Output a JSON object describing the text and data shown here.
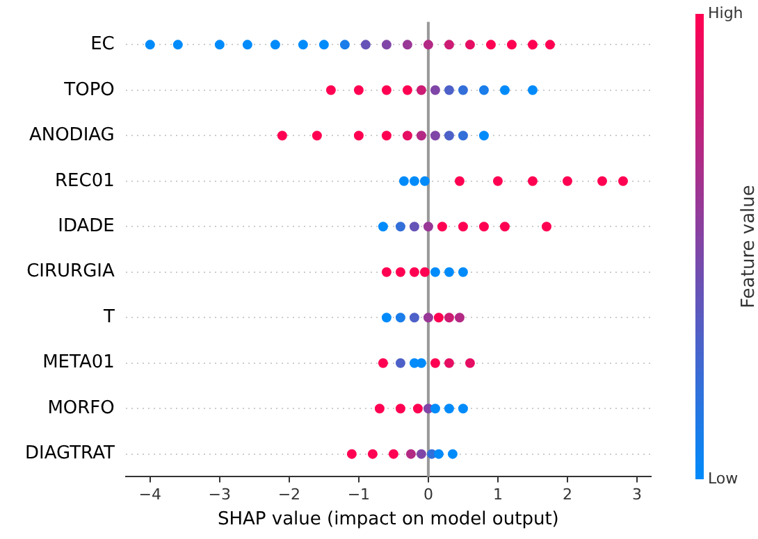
{
  "chart_data": {
    "type": "scatter",
    "orientation": "horizontal",
    "xlabel": "SHAP value (impact on model output)",
    "clabel": "Feature value",
    "clim": [
      0,
      1
    ],
    "cticks": [
      {
        "value": 0,
        "label": "Low"
      },
      {
        "value": 1,
        "label": "High"
      }
    ],
    "xlim": [
      -4.35,
      3.2
    ],
    "xticks": [
      -4,
      -3,
      -2,
      -1,
      0,
      1,
      2,
      3
    ],
    "grid": "y",
    "legend": false,
    "marker": "circle",
    "ref_lines": [
      {
        "axis": "x",
        "value": 0,
        "color": "#999999"
      }
    ],
    "categories": [
      "EC",
      "TOPO",
      "ANODIAG",
      "REC01",
      "IDADE",
      "CIRURGIA",
      "T",
      "META01",
      "MORFO",
      "DIAGTRAT"
    ],
    "series": [
      {
        "x": [
          "EC",
          "EC",
          "EC",
          "EC",
          "EC",
          "EC",
          "EC",
          "EC",
          "EC",
          "EC",
          "EC",
          "EC",
          "EC",
          "EC",
          "EC",
          "EC",
          "EC",
          "EC"
        ],
        "values": [
          -4.0,
          -3.6,
          -3.0,
          -2.6,
          -2.2,
          -1.8,
          -1.5,
          -1.2,
          -0.9,
          -0.6,
          -0.3,
          0,
          0.3,
          0.6,
          0.9,
          1.2,
          1.5,
          1.75
        ],
        "cvalues": [
          0,
          0,
          0,
          0,
          0,
          0,
          0,
          0.1,
          0.4,
          0.5,
          0.6,
          0.7,
          0.8,
          0.9,
          1,
          1,
          1,
          1
        ],
        "colors": [
          "#008bfb",
          "#008bfb",
          "#008bfb",
          "#008bfb",
          "#008bfb",
          "#008bfb",
          "#008bfb",
          "#1a7dea",
          "#6653b7",
          "#8046a7",
          "#993896",
          "#b32a85",
          "#cc1c74",
          "#e60e63",
          "#ff0052",
          "#ff0052",
          "#ff0052",
          "#ff0052"
        ]
      },
      {
        "x": [
          "TOPO",
          "TOPO",
          "TOPO",
          "TOPO",
          "TOPO",
          "TOPO",
          "TOPO",
          "TOPO",
          "TOPO",
          "TOPO",
          "TOPO"
        ],
        "values": [
          -1.4,
          -1.0,
          -0.6,
          -0.3,
          -0.1,
          0.1,
          0.3,
          0.5,
          0.8,
          1.1,
          1.5
        ],
        "cvalues": [
          1,
          1,
          1,
          1,
          0.8,
          0.5,
          0.3,
          0.2,
          0.1,
          0,
          0
        ],
        "colors": [
          "#ff0052",
          "#ff0052",
          "#ff0052",
          "#ff0052",
          "#cc1c74",
          "#8046a7",
          "#4d61c8",
          "#336fd9",
          "#1a7dea",
          "#008bfb",
          "#008bfb"
        ]
      },
      {
        "x": [
          "ANODIAG",
          "ANODIAG",
          "ANODIAG",
          "ANODIAG",
          "ANODIAG",
          "ANODIAG",
          "ANODIAG",
          "ANODIAG",
          "ANODIAG",
          "ANODIAG"
        ],
        "values": [
          -2.1,
          -1.6,
          -1.0,
          -0.6,
          -0.3,
          -0.1,
          0.1,
          0.3,
          0.5,
          0.8
        ],
        "cvalues": [
          1,
          1,
          1,
          1,
          0.9,
          0.7,
          0.5,
          0.3,
          0.2,
          0
        ],
        "colors": [
          "#ff0052",
          "#ff0052",
          "#ff0052",
          "#ff0052",
          "#e60e63",
          "#b32a85",
          "#8046a7",
          "#4d61c8",
          "#336fd9",
          "#008bfb"
        ]
      },
      {
        "x": [
          "REC01",
          "REC01",
          "REC01",
          "REC01",
          "REC01",
          "REC01",
          "REC01",
          "REC01",
          "REC01"
        ],
        "values": [
          -0.35,
          -0.2,
          -0.05,
          0.45,
          1.0,
          1.5,
          2.0,
          2.5,
          2.8
        ],
        "cvalues": [
          0,
          0,
          0,
          1,
          1,
          1,
          1,
          1,
          1
        ],
        "colors": [
          "#008bfb",
          "#008bfb",
          "#008bfb",
          "#ff0052",
          "#ff0052",
          "#ff0052",
          "#ff0052",
          "#ff0052",
          "#ff0052"
        ]
      },
      {
        "x": [
          "IDADE",
          "IDADE",
          "IDADE",
          "IDADE",
          "IDADE",
          "IDADE",
          "IDADE",
          "IDADE",
          "IDADE"
        ],
        "values": [
          -0.65,
          -0.4,
          -0.2,
          0,
          0.2,
          0.5,
          0.8,
          1.1,
          1.7
        ],
        "cvalues": [
          0,
          0.2,
          0.4,
          0.6,
          1,
          1,
          1,
          1,
          1
        ],
        "colors": [
          "#008bfb",
          "#336fd9",
          "#6653b7",
          "#993896",
          "#ff0052",
          "#ff0052",
          "#ff0052",
          "#ff0052",
          "#ff0052"
        ]
      },
      {
        "x": [
          "CIRURGIA",
          "CIRURGIA",
          "CIRURGIA",
          "CIRURGIA",
          "CIRURGIA",
          "CIRURGIA",
          "CIRURGIA"
        ],
        "values": [
          -0.6,
          -0.4,
          -0.2,
          -0.05,
          0.1,
          0.3,
          0.5
        ],
        "cvalues": [
          1,
          1,
          1,
          1,
          0,
          0,
          0
        ],
        "colors": [
          "#ff0052",
          "#ff0052",
          "#ff0052",
          "#ff0052",
          "#008bfb",
          "#008bfb",
          "#008bfb"
        ]
      },
      {
        "x": [
          "T",
          "T",
          "T",
          "T",
          "T",
          "T",
          "T"
        ],
        "values": [
          -0.6,
          -0.4,
          -0.2,
          0,
          0.15,
          0.3,
          0.45
        ],
        "cvalues": [
          0,
          0.1,
          0.3,
          0.6,
          1,
          0.8,
          0.7
        ],
        "colors": [
          "#008bfb",
          "#1a7dea",
          "#4d61c8",
          "#993896",
          "#ff0052",
          "#cc1c74",
          "#b32a85"
        ]
      },
      {
        "x": [
          "META01",
          "META01",
          "META01",
          "META01",
          "META01",
          "META01",
          "META01"
        ],
        "values": [
          -0.65,
          -0.4,
          -0.2,
          -0.1,
          0.1,
          0.3,
          0.6
        ],
        "cvalues": [
          1,
          0.3,
          0,
          0,
          1,
          0.9,
          0.9
        ],
        "colors": [
          "#ff0052",
          "#4d61c8",
          "#008bfb",
          "#008bfb",
          "#ff0052",
          "#e60e63",
          "#e60e63"
        ]
      },
      {
        "x": [
          "MORFO",
          "MORFO",
          "MORFO",
          "MORFO",
          "MORFO",
          "MORFO",
          "MORFO"
        ],
        "values": [
          -0.7,
          -0.4,
          -0.15,
          0,
          0.1,
          0.3,
          0.5
        ],
        "cvalues": [
          1,
          1,
          1,
          0.5,
          0,
          0,
          0
        ],
        "colors": [
          "#ff0052",
          "#ff0052",
          "#ff0052",
          "#8046a7",
          "#008bfb",
          "#008bfb",
          "#008bfb"
        ]
      },
      {
        "x": [
          "DIAGTRAT",
          "DIAGTRAT",
          "DIAGTRAT",
          "DIAGTRAT",
          "DIAGTRAT",
          "DIAGTRAT",
          "DIAGTRAT",
          "DIAGTRAT"
        ],
        "values": [
          -1.1,
          -0.8,
          -0.5,
          -0.25,
          -0.1,
          0.05,
          0.15,
          0.35
        ],
        "cvalues": [
          1,
          1,
          1,
          0.7,
          0.5,
          0.2,
          0,
          0
        ],
        "colors": [
          "#ff0052",
          "#ff0052",
          "#ff0052",
          "#b32a85",
          "#8046a7",
          "#336fd9",
          "#008bfb",
          "#008bfb"
        ]
      }
    ]
  }
}
